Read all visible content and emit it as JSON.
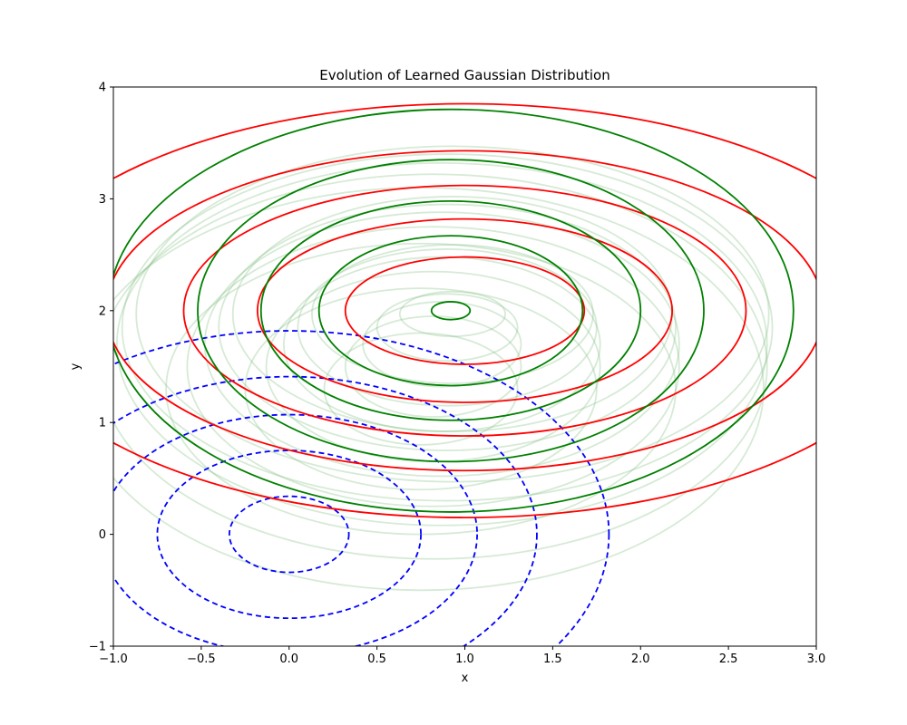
{
  "chart_data": {
    "type": "contour",
    "title": "Evolution of Learned Gaussian Distribution",
    "xlabel": "x",
    "ylabel": "y",
    "xlim": [
      -1.0,
      3.0
    ],
    "ylim": [
      -1,
      4
    ],
    "xticks": [
      "−1.0",
      "−0.5",
      "0.0",
      "0.5",
      "1.0",
      "1.5",
      "2.0",
      "2.5",
      "3.0"
    ],
    "xtick_values": [
      -1.0,
      -0.5,
      0.0,
      0.5,
      1.0,
      1.5,
      2.0,
      2.5,
      3.0
    ],
    "yticks": [
      "−1",
      "0",
      "1",
      "2",
      "3",
      "4"
    ],
    "ytick_values": [
      -1,
      0,
      1,
      2,
      3,
      4
    ],
    "grid": false,
    "colors": {
      "initial": "#0000ff",
      "target": "#ff0000",
      "learned_final": "#008000",
      "learned_history": "#77bb77"
    },
    "series": [
      {
        "role": "initial",
        "style": "dashed",
        "center": [
          0.0,
          0.0
        ],
        "radii": [
          [
            0.34,
            0.34
          ],
          [
            0.75,
            0.75
          ],
          [
            1.07,
            1.07
          ],
          [
            1.41,
            1.41
          ],
          [
            1.82,
            1.82
          ]
        ]
      },
      {
        "role": "target",
        "style": "solid",
        "center": [
          1.0,
          2.0
        ],
        "radii": [
          [
            0.68,
            0.48
          ],
          [
            1.18,
            0.82
          ],
          [
            1.6,
            1.12
          ],
          [
            2.04,
            1.43
          ],
          [
            2.6,
            1.85
          ]
        ]
      },
      {
        "role": "learned_final",
        "style": "solid",
        "center": [
          0.92,
          2.0
        ],
        "radii": [
          [
            0.11,
            0.08
          ],
          [
            0.75,
            0.67
          ],
          [
            1.08,
            0.98
          ],
          [
            1.44,
            1.35
          ],
          [
            1.95,
            1.8
          ]
        ]
      },
      {
        "role": "learned_history",
        "style": "solid",
        "opacity": 0.3,
        "snapshots": [
          {
            "center": [
              0.75,
              1.3
            ],
            "radii": [
              [
                0.55,
                0.5
              ],
              [
                1.0,
                0.9
              ],
              [
                1.45,
                1.3
              ],
              [
                1.95,
                1.8
              ]
            ]
          },
          {
            "center": [
              0.82,
              1.5
            ],
            "radii": [
              [
                0.5,
                0.45
              ],
              [
                0.95,
                0.85
              ],
              [
                1.4,
                1.25
              ],
              [
                1.9,
                1.72
              ]
            ]
          },
          {
            "center": [
              0.87,
              1.7
            ],
            "radii": [
              [
                0.45,
                0.38
              ],
              [
                0.9,
                0.78
              ],
              [
                1.35,
                1.18
              ],
              [
                1.85,
                1.62
              ]
            ]
          },
          {
            "center": [
              0.9,
              1.85
            ],
            "radii": [
              [
                0.4,
                0.3
              ],
              [
                0.85,
                0.7
              ],
              [
                1.3,
                1.1
              ],
              [
                1.85,
                1.55
              ]
            ]
          },
          {
            "center": [
              0.93,
              1.97
            ],
            "radii": [
              [
                0.3,
                0.2
              ],
              [
                0.8,
                0.62
              ],
              [
                1.25,
                1.05
              ],
              [
                1.8,
                1.5
              ]
            ]
          }
        ]
      }
    ]
  }
}
